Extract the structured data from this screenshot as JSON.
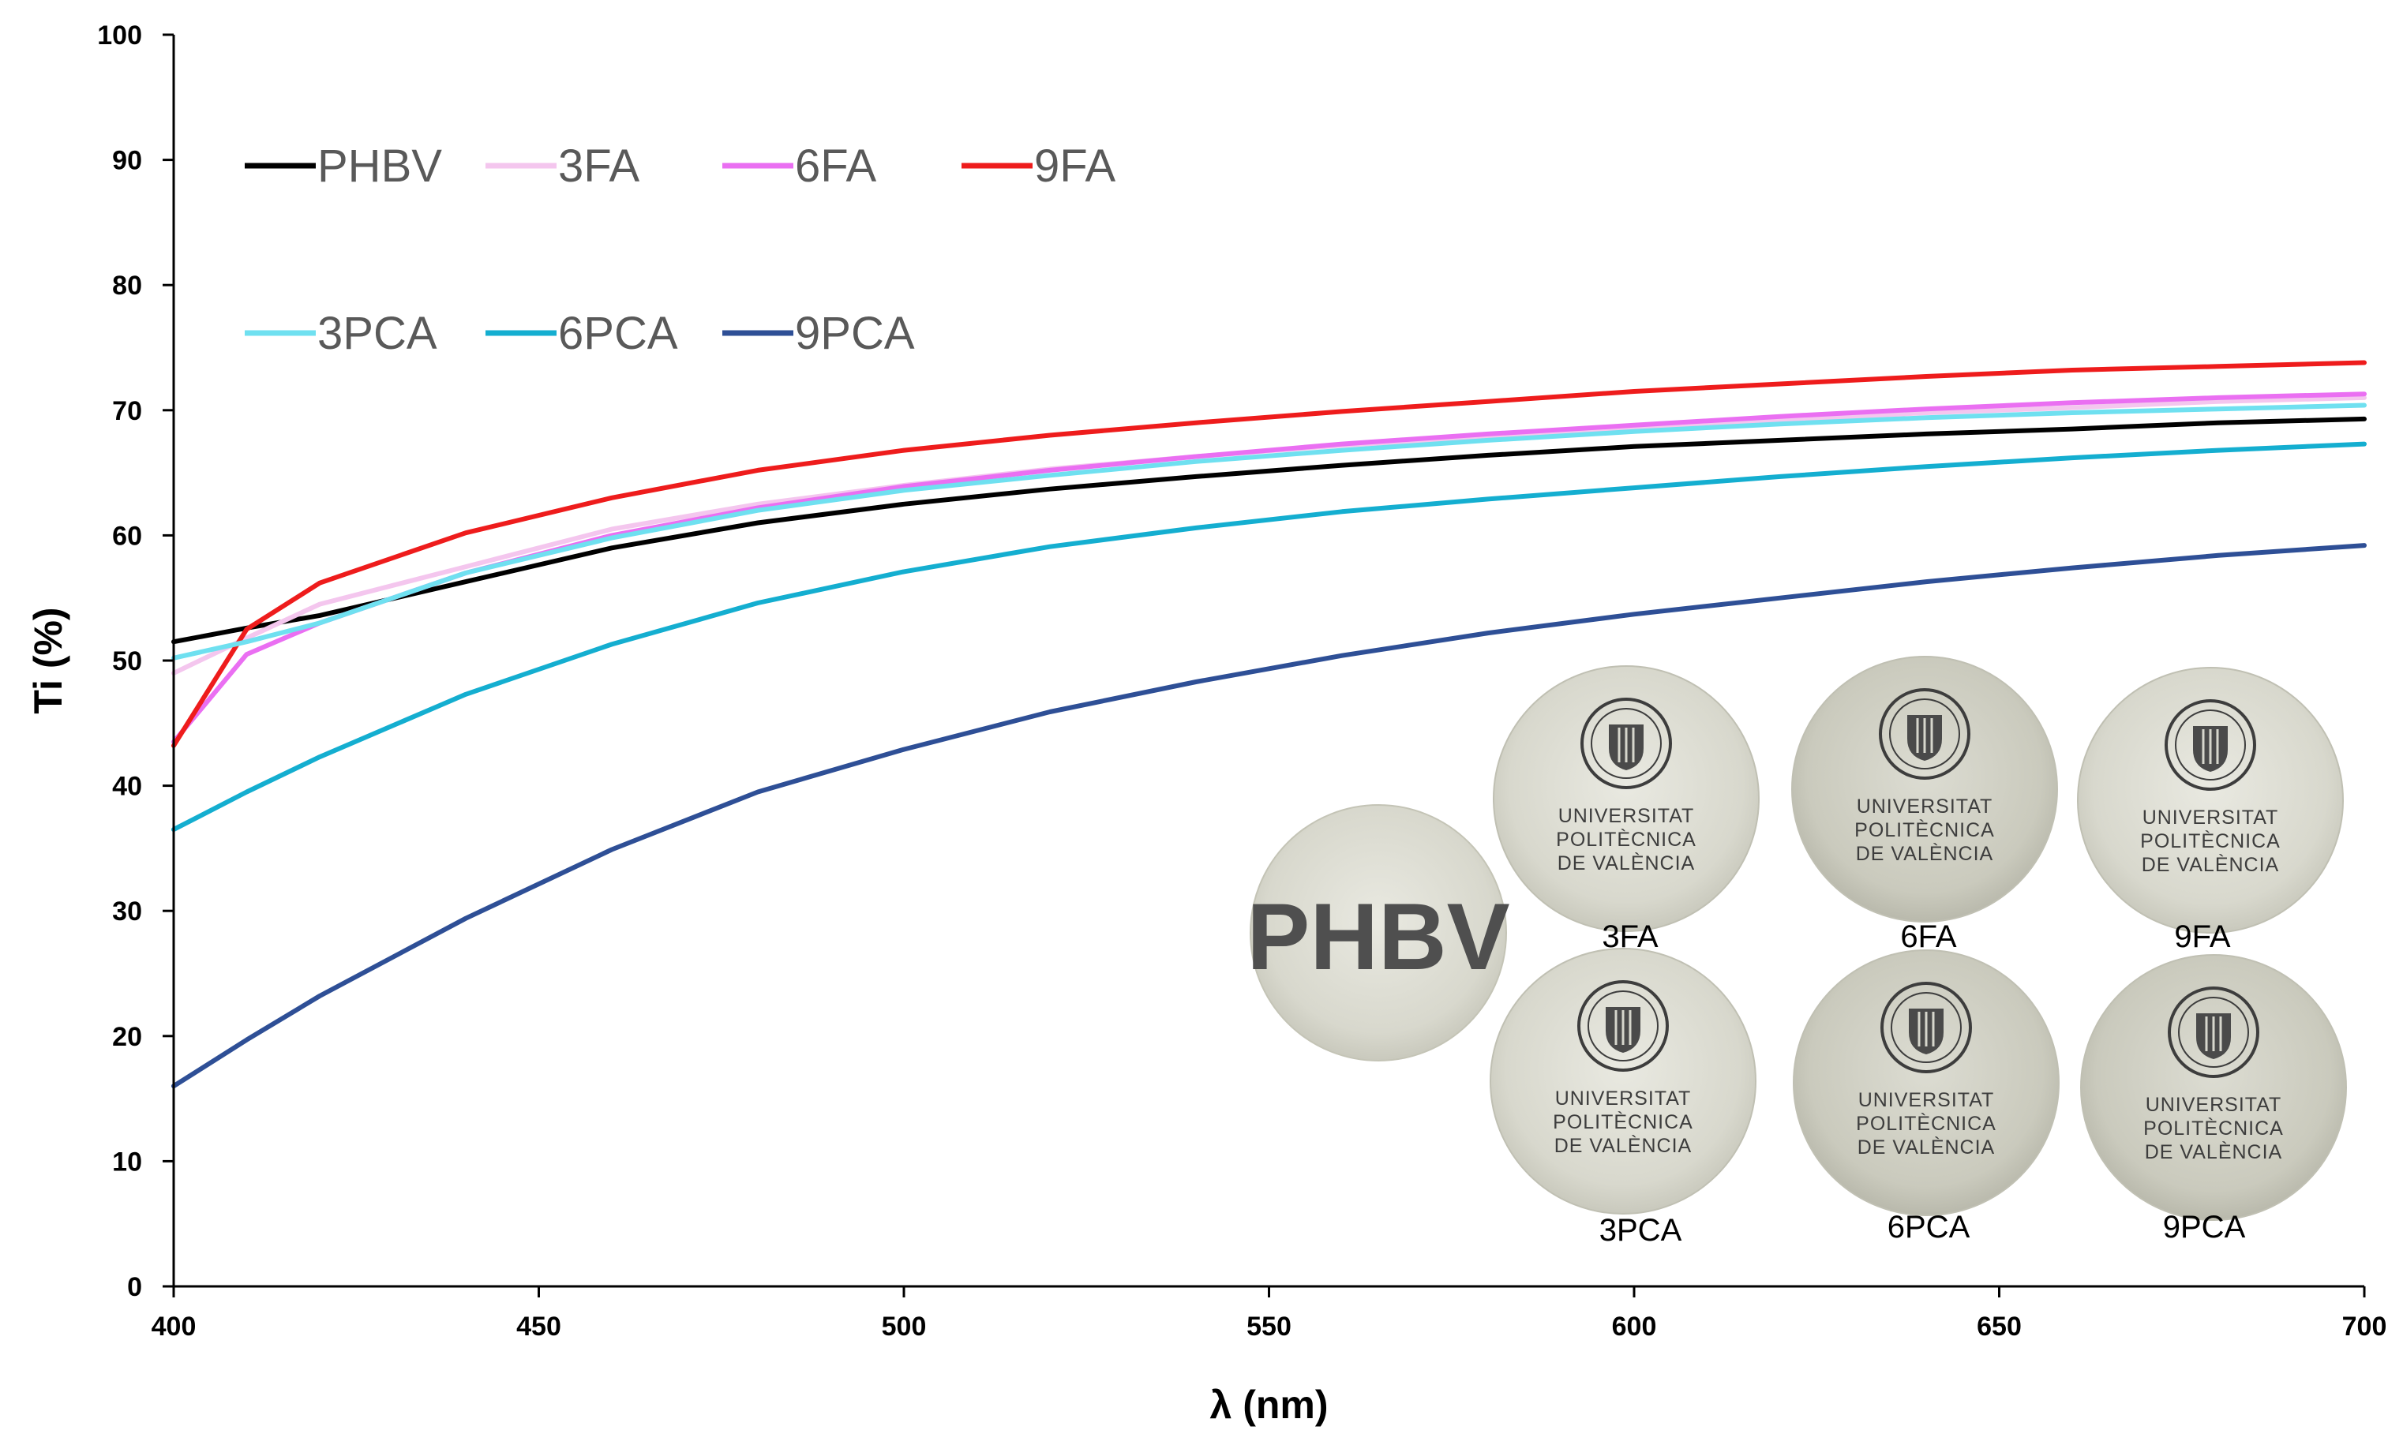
{
  "chart_data": {
    "type": "line",
    "title": "",
    "xlabel": "λ (nm)",
    "ylabel": "Ti (%)",
    "xlim": [
      400,
      700
    ],
    "ylim": [
      0,
      100
    ],
    "xticks": [
      400,
      450,
      500,
      550,
      600,
      650,
      700
    ],
    "yticks": [
      0,
      10,
      20,
      30,
      40,
      50,
      60,
      70,
      80,
      90,
      100
    ],
    "legend_position": "top-left",
    "x": [
      400,
      410,
      420,
      440,
      460,
      480,
      500,
      520,
      540,
      560,
      580,
      600,
      620,
      640,
      660,
      680,
      700
    ],
    "series": [
      {
        "name": "PHBV",
        "color": "#000000",
        "values": [
          51.5,
          52.6,
          53.6,
          56.3,
          59.0,
          61.0,
          62.5,
          63.7,
          64.7,
          65.6,
          66.4,
          67.1,
          67.6,
          68.1,
          68.5,
          69.0,
          69.3
        ]
      },
      {
        "name": "3FA",
        "color": "#f4c6ee",
        "values": [
          49.0,
          51.8,
          54.5,
          57.5,
          60.5,
          62.5,
          64.0,
          65.3,
          66.3,
          67.2,
          67.9,
          68.6,
          69.2,
          69.8,
          70.2,
          70.7,
          71.0
        ]
      },
      {
        "name": "6FA",
        "color": "#ea6ff2",
        "values": [
          43.5,
          50.5,
          53.0,
          57.0,
          60.0,
          62.2,
          63.9,
          65.2,
          66.3,
          67.3,
          68.1,
          68.8,
          69.5,
          70.1,
          70.6,
          71.0,
          71.3
        ]
      },
      {
        "name": "9FA",
        "color": "#ee1c1c",
        "values": [
          43.2,
          52.5,
          56.2,
          60.2,
          63.0,
          65.2,
          66.8,
          68.0,
          69.0,
          69.9,
          70.7,
          71.5,
          72.1,
          72.7,
          73.2,
          73.5,
          73.8
        ]
      },
      {
        "name": "3PCA",
        "color": "#6fe0f0",
        "values": [
          50.2,
          51.5,
          53.0,
          57.0,
          59.8,
          62.0,
          63.6,
          64.8,
          65.9,
          66.8,
          67.6,
          68.3,
          68.9,
          69.4,
          69.8,
          70.1,
          70.4
        ]
      },
      {
        "name": "6PCA",
        "color": "#14aed0",
        "values": [
          36.5,
          39.5,
          42.3,
          47.3,
          51.3,
          54.6,
          57.1,
          59.1,
          60.6,
          61.9,
          62.9,
          63.8,
          64.7,
          65.5,
          66.2,
          66.8,
          67.3
        ]
      },
      {
        "name": "9PCA",
        "color": "#2e4f96",
        "values": [
          16.0,
          19.7,
          23.2,
          29.4,
          34.9,
          39.5,
          42.9,
          45.9,
          48.3,
          50.4,
          52.2,
          53.7,
          55.0,
          56.3,
          57.4,
          58.4,
          59.2
        ]
      }
    ],
    "legend_rows": [
      [
        "PHBV",
        "3FA",
        "6FA",
        "9FA"
      ],
      [
        "3PCA",
        "6PCA",
        "9PCA"
      ]
    ]
  },
  "inset": {
    "phbv_disc_text": "PHBV",
    "logo_lines": [
      "UNIVERSITAT",
      "POLITÈCNICA",
      "DE VALÈNCIA"
    ],
    "samples": [
      "3FA",
      "6FA",
      "9FA",
      "3PCA",
      "6PCA",
      "9PCA"
    ]
  }
}
